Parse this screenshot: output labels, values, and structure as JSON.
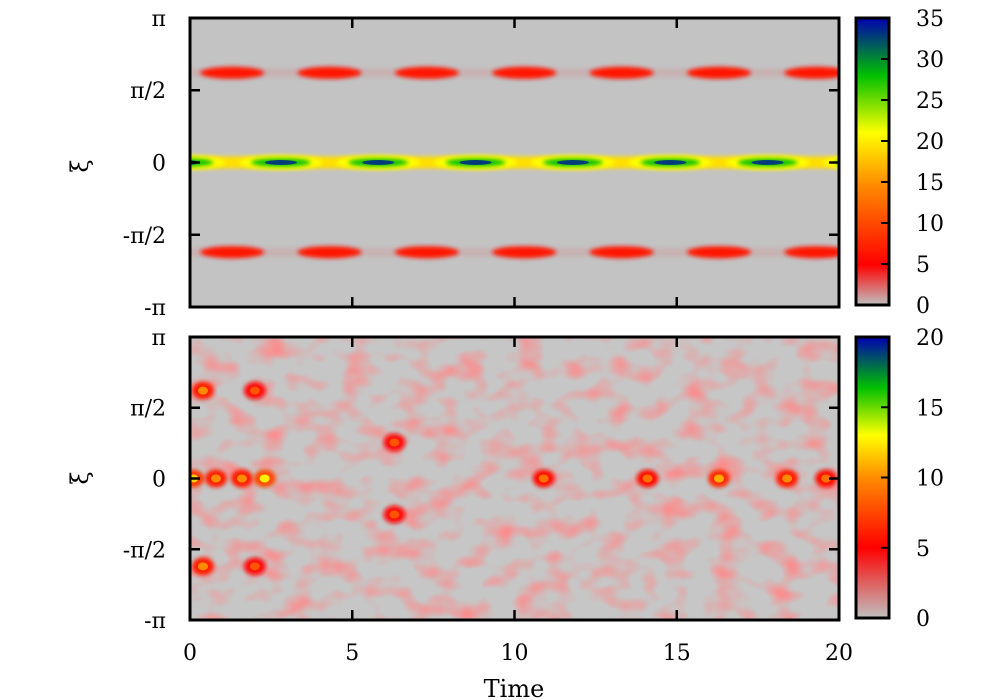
{
  "chart_data": [
    {
      "type": "heatmap",
      "name": "top-panel",
      "xlabel": "",
      "ylabel": "ξ",
      "xlim": [
        0,
        20
      ],
      "ylim": [
        -3.14159,
        3.14159
      ],
      "y_ticks": [
        {
          "value": 3.14159,
          "label": "π"
        },
        {
          "value": 1.5708,
          "label": "π/2"
        },
        {
          "value": 0,
          "label": "0"
        },
        {
          "value": -1.5708,
          "label": "-π/2"
        },
        {
          "value": -3.14159,
          "label": "-π"
        }
      ],
      "colorbar": {
        "min": 0,
        "max": 35,
        "ticks": [
          "0",
          "5",
          "10",
          "15",
          "20",
          "25",
          "30",
          "35"
        ],
        "colors": [
          "#c0c0c0",
          "#ff0000",
          "#ffa500",
          "#ffff00",
          "#00c000",
          "#0000c0"
        ]
      },
      "bands": [
        {
          "y": 0,
          "peak": 33,
          "period": 3.0,
          "phase": 2.8,
          "min": 20
        },
        {
          "y": 1.95,
          "peak": 9,
          "period": 3.0,
          "phase": 1.3,
          "min": 3
        },
        {
          "y": -1.95,
          "peak": 9,
          "period": 3.0,
          "phase": 1.3,
          "min": 3
        }
      ]
    },
    {
      "type": "heatmap",
      "name": "bottom-panel",
      "xlabel": "Time",
      "ylabel": "ξ",
      "xlim": [
        0,
        20
      ],
      "ylim": [
        -3.14159,
        3.14159
      ],
      "x_ticks": [
        "0",
        "5",
        "10",
        "15",
        "20"
      ],
      "y_ticks": [
        {
          "value": 3.14159,
          "label": "π"
        },
        {
          "value": 1.5708,
          "label": "π/2"
        },
        {
          "value": 0,
          "label": "0"
        },
        {
          "value": -1.5708,
          "label": "-π/2"
        },
        {
          "value": -3.14159,
          "label": "-π"
        }
      ],
      "colorbar": {
        "min": 0,
        "max": 20,
        "ticks": [
          "0",
          "5",
          "10",
          "15",
          "20"
        ],
        "colors": [
          "#c0c0c0",
          "#ff0000",
          "#ffa500",
          "#ffff00",
          "#00c000",
          "#0000c0"
        ]
      },
      "hotspots": [
        {
          "t": 0.1,
          "xi": 0,
          "v": 11
        },
        {
          "t": 0.8,
          "xi": 0,
          "v": 9
        },
        {
          "t": 1.6,
          "xi": 0,
          "v": 9
        },
        {
          "t": 2.3,
          "xi": 0,
          "v": 12
        },
        {
          "t": 0.4,
          "xi": 1.95,
          "v": 9
        },
        {
          "t": 0.4,
          "xi": -1.95,
          "v": 9
        },
        {
          "t": 2.0,
          "xi": 1.95,
          "v": 7
        },
        {
          "t": 2.0,
          "xi": -1.95,
          "v": 7
        },
        {
          "t": 6.3,
          "xi": 0.8,
          "v": 7
        },
        {
          "t": 6.3,
          "xi": -0.8,
          "v": 7
        },
        {
          "t": 10.9,
          "xi": 0,
          "v": 8
        },
        {
          "t": 14.1,
          "xi": 0,
          "v": 8
        },
        {
          "t": 16.3,
          "xi": 0,
          "v": 10
        },
        {
          "t": 18.4,
          "xi": 0,
          "v": 9
        },
        {
          "t": 19.6,
          "xi": 0,
          "v": 8
        }
      ]
    }
  ]
}
